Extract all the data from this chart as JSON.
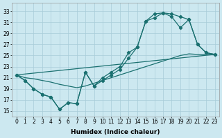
{
  "xlabel": "Humidex (Indice chaleur)",
  "bg_color": "#cce8f0",
  "grid_color": "#a8ccd8",
  "line_color": "#1a7070",
  "xlim": [
    -0.5,
    23.5
  ],
  "ylim": [
    14.0,
    34.5
  ],
  "xticks": [
    0,
    1,
    2,
    3,
    4,
    5,
    6,
    7,
    8,
    9,
    10,
    11,
    12,
    13,
    14,
    15,
    16,
    17,
    18,
    19,
    20,
    21,
    22,
    23
  ],
  "yticks": [
    15,
    17,
    19,
    21,
    23,
    25,
    27,
    29,
    31,
    33
  ],
  "line1_x": [
    0,
    1,
    2,
    3,
    4,
    5,
    6,
    7,
    8,
    9,
    10,
    11,
    12,
    13,
    14,
    15,
    16,
    17,
    18,
    19,
    20,
    21,
    22,
    23
  ],
  "line1_y": [
    21.5,
    20.5,
    19.0,
    18.0,
    17.5,
    15.3,
    16.5,
    16.3,
    22.0,
    19.5,
    21.0,
    22.0,
    23.0,
    25.5,
    26.5,
    31.2,
    32.5,
    32.7,
    32.5,
    32.0,
    31.5,
    27.0,
    25.5,
    25.2
  ],
  "line2_x": [
    0,
    1,
    2,
    3,
    4,
    5,
    6,
    7,
    8,
    9,
    10,
    11,
    12,
    13,
    14,
    15,
    16,
    17,
    18,
    19,
    20,
    21,
    22,
    23
  ],
  "line2_y": [
    21.5,
    20.5,
    19.0,
    18.0,
    17.5,
    15.3,
    16.5,
    16.3,
    22.0,
    19.5,
    20.5,
    21.5,
    22.5,
    24.5,
    26.5,
    31.2,
    31.8,
    32.7,
    32.0,
    30.0,
    31.5,
    27.0,
    25.5,
    25.2
  ],
  "line3_x": [
    0,
    1,
    2,
    3,
    4,
    5,
    6,
    7,
    8,
    9,
    10,
    11,
    12,
    13,
    14,
    15,
    16,
    17,
    18,
    19,
    20,
    21,
    22,
    23
  ],
  "line3_y": [
    21.5,
    21.0,
    20.8,
    20.5,
    20.2,
    19.8,
    19.5,
    19.2,
    19.5,
    20.0,
    20.5,
    21.0,
    21.5,
    22.0,
    22.5,
    23.0,
    23.5,
    24.0,
    24.5,
    25.0,
    25.3,
    25.2,
    25.2,
    25.2
  ],
  "line4_x": [
    0,
    23
  ],
  "line4_y": [
    21.5,
    25.2
  ],
  "marker_size": 2.2,
  "line_width": 0.9,
  "font_size_tick": 5.5,
  "font_size_label": 6.5
}
